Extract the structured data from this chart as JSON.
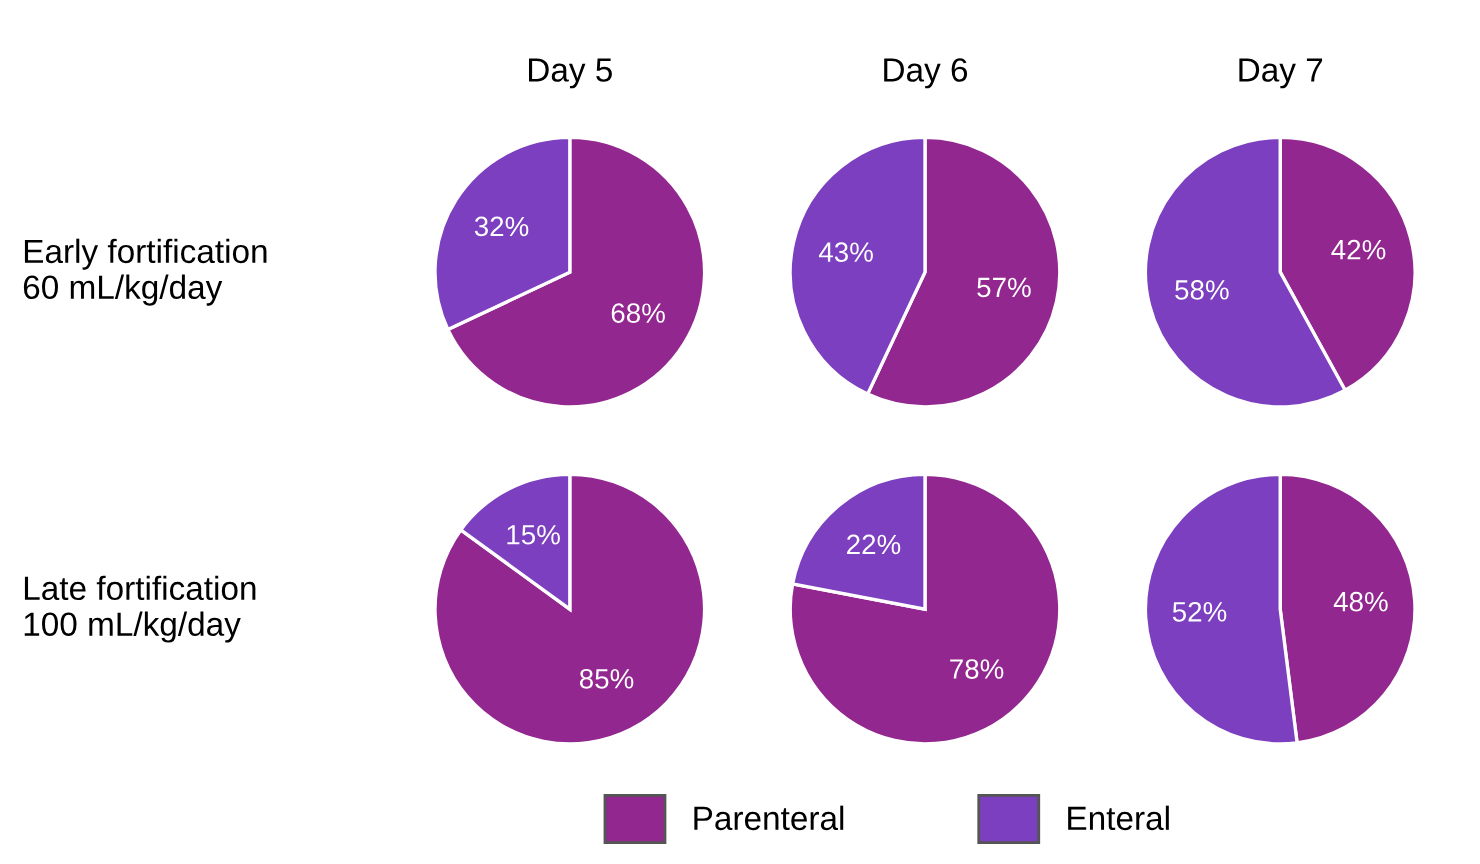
{
  "chart_data": [
    {
      "type": "pie",
      "title": "Day 5",
      "ylabel": "Early fortification\n60 mL/kg/day",
      "categories": [
        "Parenteral",
        "Enteral"
      ],
      "values": [
        68,
        32
      ],
      "colors": [
        "#92278f",
        "#7b3fbf"
      ],
      "value_labels": [
        "68%",
        "32%"
      ],
      "legend": "bottom"
    },
    {
      "type": "pie",
      "title": "Day 6",
      "categories": [
        null,
        null
      ],
      "values": [
        57,
        43
      ],
      "colors": [
        "#92278f",
        "#7b3fbf"
      ],
      "value_labels": [
        "57%",
        "43%"
      ]
    },
    {
      "type": "pie",
      "title": "Day 7",
      "categories": [
        null,
        null
      ],
      "values": [
        42,
        58
      ],
      "colors": [
        "#92278f",
        "#7b3fbf"
      ],
      "value_labels": [
        "42%",
        "58%"
      ]
    },
    {
      "type": "pie",
      "ylabel": "Late fortification\n100 mL/kg/day",
      "categories": [
        null,
        null
      ],
      "values": [
        85,
        15
      ],
      "colors": [
        "#92278f",
        "#7b3fbf"
      ],
      "value_labels": [
        "85%",
        "15%"
      ]
    },
    {
      "type": "pie",
      "categories": [
        null,
        null
      ],
      "values": [
        78,
        22
      ],
      "colors": [
        "#92278f",
        "#7b3fbf"
      ],
      "value_labels": [
        "78%",
        "22%"
      ]
    },
    {
      "type": "pie",
      "categories": [
        null,
        null
      ],
      "values": [
        48,
        52
      ],
      "colors": [
        "#92278f",
        "#7b3fbf"
      ],
      "value_labels": [
        "48%",
        "52%"
      ]
    }
  ]
}
